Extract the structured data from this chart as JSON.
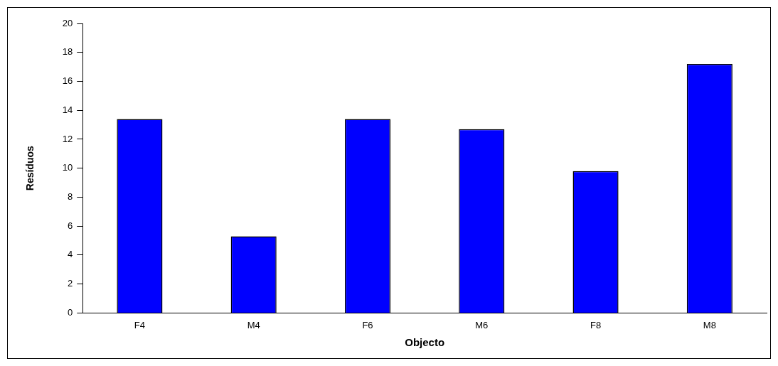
{
  "chart_data": {
    "type": "bar",
    "xlabel": "Objecto",
    "ylabel": "Resíduos",
    "categories": [
      "F4",
      "M4",
      "F6",
      "M6",
      "F8",
      "M8"
    ],
    "values": [
      13.4,
      5.3,
      13.4,
      12.7,
      9.8,
      17.2
    ],
    "color": "#0000ff",
    "ylim": [
      0,
      20
    ],
    "yticks": [
      0,
      2,
      4,
      6,
      8,
      10,
      12,
      14,
      16,
      18,
      20
    ],
    "grid": false,
    "legend": false
  }
}
